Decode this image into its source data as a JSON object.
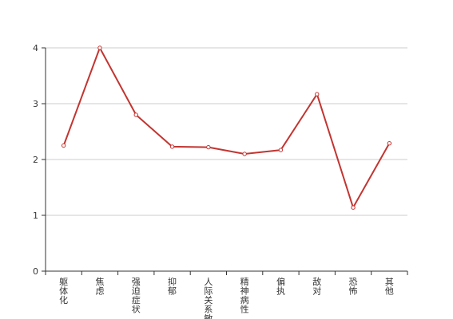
{
  "chart_data": {
    "type": "line",
    "categories": [
      "躯体化",
      "焦虑",
      "强迫症状",
      "抑郁",
      "人际关系敏感",
      "精神病性",
      "偏执",
      "敌对",
      "恐怖",
      "其他"
    ],
    "series": [
      {
        "values": [
          2.25,
          4.0,
          2.8,
          2.23,
          2.22,
          2.1,
          2.17,
          3.17,
          1.14,
          2.29
        ],
        "color": "#c23531"
      }
    ],
    "yticks": [
      0,
      1,
      2,
      3,
      4
    ],
    "ylim": [
      0,
      4
    ],
    "grid": true,
    "title": "",
    "xlabel": "",
    "ylabel": ""
  }
}
